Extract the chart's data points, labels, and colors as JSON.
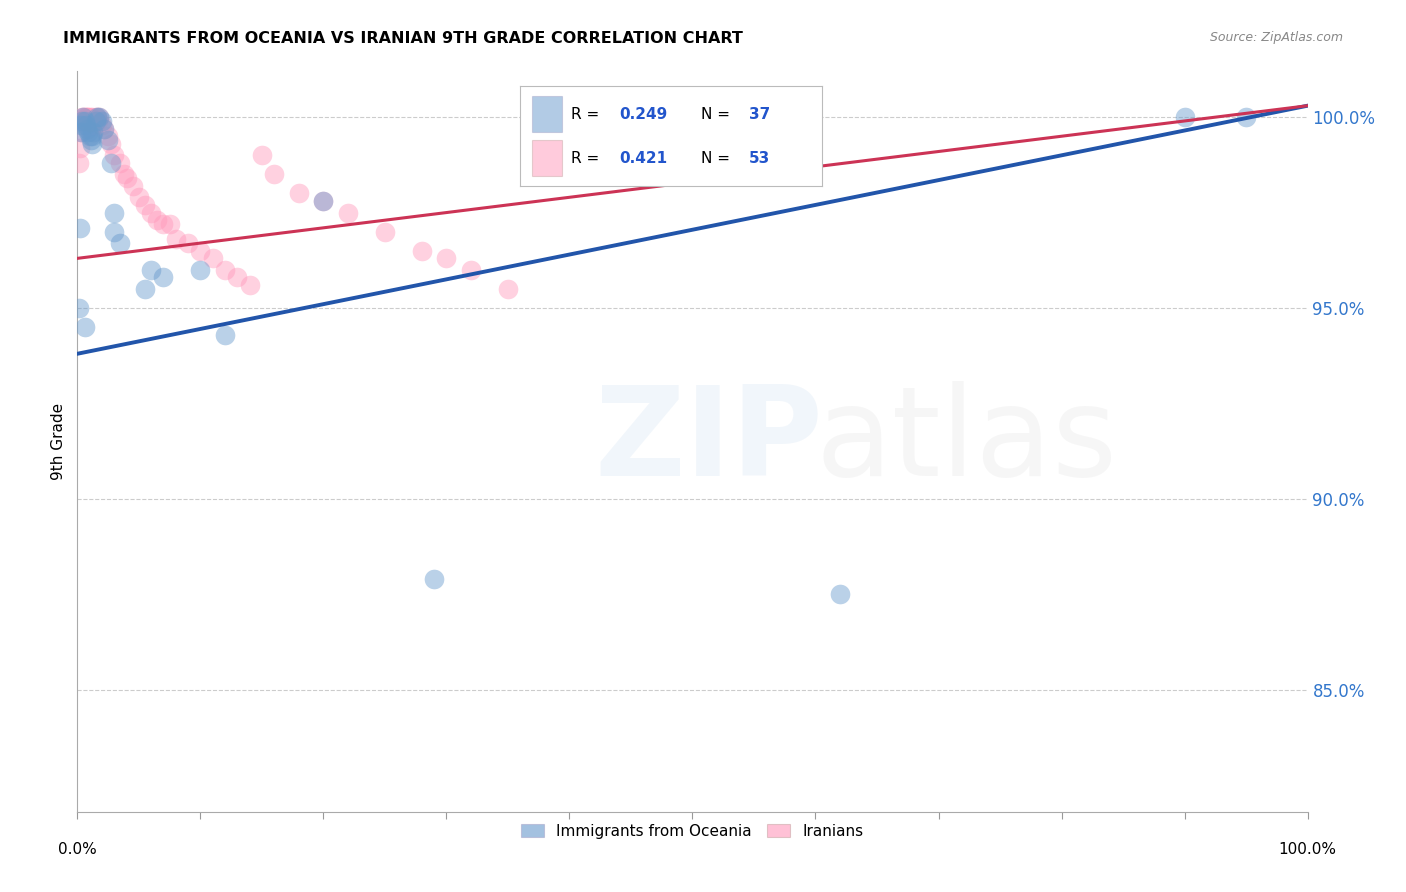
{
  "title": "IMMIGRANTS FROM OCEANIA VS IRANIAN 9TH GRADE CORRELATION CHART",
  "source": "Source: ZipAtlas.com",
  "ylabel": "9th Grade",
  "yticks": [
    "85.0%",
    "90.0%",
    "95.0%",
    "100.0%"
  ],
  "ytick_vals": [
    0.85,
    0.9,
    0.95,
    1.0
  ],
  "xlim": [
    0.0,
    1.0
  ],
  "ylim": [
    0.818,
    1.012
  ],
  "blue_color": "#6699CC",
  "pink_color": "#FF99BB",
  "blue_line_color": "#2255AA",
  "pink_line_color": "#CC3355",
  "R_blue": 0.249,
  "N_blue": 37,
  "R_pink": 0.421,
  "N_pink": 53,
  "legend_entries": [
    "Immigrants from Oceania",
    "Iranians"
  ],
  "blue_line_y_start": 0.938,
  "blue_line_y_end": 1.003,
  "pink_line_y_start": 0.963,
  "pink_line_y_end": 1.003,
  "blue_x": [
    0.002,
    0.003,
    0.003,
    0.004,
    0.005,
    0.006,
    0.007,
    0.008,
    0.009,
    0.01,
    0.011,
    0.012,
    0.012,
    0.013,
    0.015,
    0.016,
    0.018,
    0.02,
    0.022,
    0.025,
    0.027,
    0.03,
    0.03,
    0.035,
    0.055,
    0.06,
    0.07,
    0.1,
    0.12,
    0.2,
    0.29,
    0.38,
    0.62,
    0.9,
    0.95,
    0.001,
    0.006
  ],
  "blue_y": [
    0.971,
    0.996,
    0.998,
    0.999,
    1.0,
    0.999,
    0.998,
    0.997,
    0.996,
    0.995,
    0.994,
    0.993,
    0.995,
    0.996,
    0.999,
    1.0,
    1.0,
    0.999,
    0.997,
    0.994,
    0.988,
    0.975,
    0.97,
    0.967,
    0.955,
    0.96,
    0.958,
    0.96,
    0.943,
    0.978,
    0.879,
    0.988,
    0.875,
    1.0,
    1.0,
    0.95,
    0.945
  ],
  "pink_x": [
    0.001,
    0.002,
    0.003,
    0.003,
    0.004,
    0.005,
    0.006,
    0.007,
    0.007,
    0.008,
    0.009,
    0.01,
    0.011,
    0.012,
    0.012,
    0.013,
    0.014,
    0.015,
    0.016,
    0.017,
    0.018,
    0.02,
    0.022,
    0.025,
    0.027,
    0.03,
    0.035,
    0.038,
    0.04,
    0.045,
    0.05,
    0.055,
    0.06,
    0.065,
    0.07,
    0.075,
    0.08,
    0.09,
    0.1,
    0.11,
    0.12,
    0.13,
    0.14,
    0.15,
    0.16,
    0.18,
    0.2,
    0.22,
    0.25,
    0.28,
    0.3,
    0.32,
    0.35
  ],
  "pink_y": [
    0.988,
    0.992,
    0.996,
    0.999,
    1.0,
    1.0,
    1.0,
    1.0,
    0.999,
    1.0,
    1.0,
    1.0,
    0.999,
    0.998,
    1.0,
    0.999,
    0.998,
    1.0,
    1.0,
    0.999,
    1.0,
    0.998,
    0.997,
    0.995,
    0.993,
    0.99,
    0.988,
    0.985,
    0.984,
    0.982,
    0.979,
    0.977,
    0.975,
    0.973,
    0.972,
    0.972,
    0.968,
    0.967,
    0.965,
    0.963,
    0.96,
    0.958,
    0.956,
    0.99,
    0.985,
    0.98,
    0.978,
    0.975,
    0.97,
    0.965,
    0.963,
    0.96,
    0.955
  ]
}
